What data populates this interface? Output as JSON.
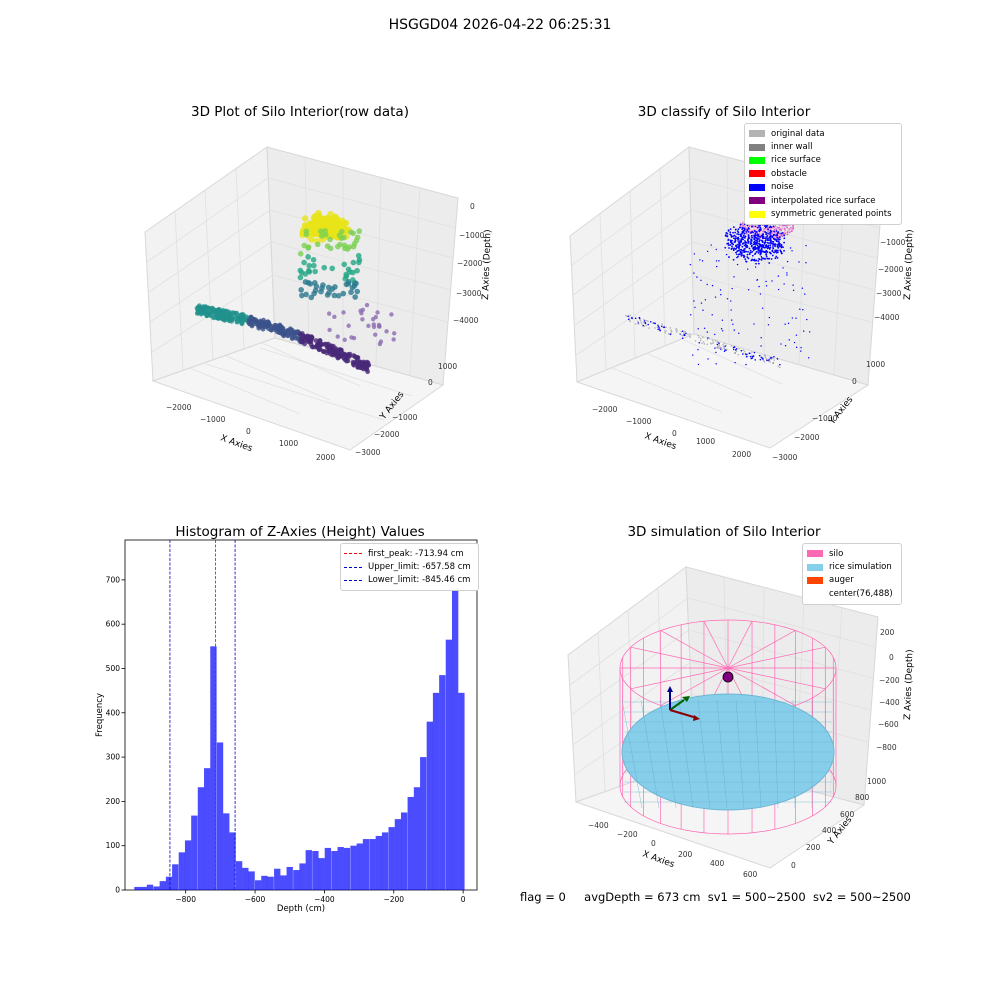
{
  "figure": {
    "title": "HSGGD04 2026-04-22 06:25:31",
    "status": {
      "flag": "flag = 0",
      "avg_depth": "avgDepth = 673 cm",
      "sv1": "sv1 = 500~2500",
      "sv2": "sv2 = 500~2500"
    }
  },
  "panels": {
    "raw": {
      "title": "3D Plot of Silo Interior(row data)",
      "xlabel": "X Axies",
      "ylabel": "Y Axies",
      "zlabel": "Z Axies (Depth)",
      "xticks": [
        "−2000",
        "−1000",
        "0",
        "1000",
        "2000"
      ],
      "yticks": [
        "1000",
        "0",
        "−1000",
        "−2000",
        "−3000",
        "−4000"
      ],
      "zticks": [
        "0",
        "−1000",
        "−2000",
        "−3000",
        "−4000"
      ]
    },
    "classify": {
      "title": "3D classify of Silo Interior",
      "xlabel": "X Axies",
      "ylabel": "Y Axies",
      "zlabel": "Z Axies (Depth)",
      "xticks": [
        "−2000",
        "−1000",
        "0",
        "1000",
        "2000"
      ],
      "yticks": [
        "1000",
        "0",
        "−1000",
        "−2000",
        "−3000",
        "−4000"
      ],
      "zticks": [
        "−1000",
        "−2000",
        "−3000",
        "−4000"
      ],
      "legend": [
        {
          "label": "original data",
          "color": "#b3b3b3"
        },
        {
          "label": "inner wall",
          "color": "#808080"
        },
        {
          "label": "rice surface",
          "color": "#00ff00"
        },
        {
          "label": "obstacle",
          "color": "#ff0000"
        },
        {
          "label": "noise",
          "color": "#0000ff"
        },
        {
          "label": "interpolated rice surface",
          "color": "#800080"
        },
        {
          "label": "symmetric generated points",
          "color": "#ffff00"
        }
      ]
    },
    "simulation": {
      "title": "3D simulation of Silo Interior",
      "xlabel": "X Axies",
      "ylabel": "Y Axies",
      "zlabel": "Z Axies (Depth)",
      "xticks": [
        "−400",
        "−200",
        "0",
        "200",
        "400",
        "600"
      ],
      "yticks": [
        "1000",
        "800",
        "600",
        "400",
        "200",
        "0"
      ],
      "zticks": [
        "200",
        "0",
        "−200",
        "−400",
        "−600",
        "−800"
      ],
      "legend": [
        {
          "label": "silo",
          "color": "#ff69b4"
        },
        {
          "label": "rice simulation",
          "color": "#87ceeb"
        },
        {
          "label": "auger",
          "color": "#ff4500"
        },
        {
          "label": "center(76,488)",
          "color": ""
        }
      ]
    }
  },
  "chart_data": {
    "type": "bar",
    "title": "Histogram of Z-Axies (Height) Values",
    "xlabel": "Depth (cm)",
    "ylabel": "Frequency",
    "xlim": [
      -975,
      40
    ],
    "ylim": [
      0,
      790
    ],
    "xticks": [
      -800,
      -600,
      -400,
      -200,
      0
    ],
    "yticks": [
      0,
      100,
      200,
      300,
      400,
      500,
      600,
      700
    ],
    "bin_width": 18.3,
    "bins": [
      {
        "x": -939,
        "count": 7
      },
      {
        "x": -921,
        "count": 7
      },
      {
        "x": -903,
        "count": 12
      },
      {
        "x": -884,
        "count": 8
      },
      {
        "x": -866,
        "count": 20
      },
      {
        "x": -848,
        "count": 30
      },
      {
        "x": -830,
        "count": 58
      },
      {
        "x": -811,
        "count": 85
      },
      {
        "x": -793,
        "count": 112
      },
      {
        "x": -775,
        "count": 168
      },
      {
        "x": -756,
        "count": 232
      },
      {
        "x": -738,
        "count": 275
      },
      {
        "x": -720,
        "count": 550
      },
      {
        "x": -701,
        "count": 333
      },
      {
        "x": -683,
        "count": 173
      },
      {
        "x": -665,
        "count": 130
      },
      {
        "x": -646,
        "count": 65
      },
      {
        "x": -628,
        "count": 50
      },
      {
        "x": -610,
        "count": 42
      },
      {
        "x": -591,
        "count": 22
      },
      {
        "x": -573,
        "count": 32
      },
      {
        "x": -555,
        "count": 30
      },
      {
        "x": -536,
        "count": 48
      },
      {
        "x": -518,
        "count": 33
      },
      {
        "x": -500,
        "count": 52
      },
      {
        "x": -481,
        "count": 45
      },
      {
        "x": -463,
        "count": 60
      },
      {
        "x": -445,
        "count": 90
      },
      {
        "x": -426,
        "count": 88
      },
      {
        "x": -408,
        "count": 72
      },
      {
        "x": -390,
        "count": 95
      },
      {
        "x": -371,
        "count": 88
      },
      {
        "x": -353,
        "count": 97
      },
      {
        "x": -335,
        "count": 95
      },
      {
        "x": -316,
        "count": 100
      },
      {
        "x": -298,
        "count": 105
      },
      {
        "x": -280,
        "count": 115
      },
      {
        "x": -261,
        "count": 115
      },
      {
        "x": -243,
        "count": 122
      },
      {
        "x": -225,
        "count": 130
      },
      {
        "x": -206,
        "count": 142
      },
      {
        "x": -188,
        "count": 160
      },
      {
        "x": -170,
        "count": 175
      },
      {
        "x": -151,
        "count": 210
      },
      {
        "x": -133,
        "count": 232
      },
      {
        "x": -115,
        "count": 300
      },
      {
        "x": -96,
        "count": 380
      },
      {
        "x": -78,
        "count": 445
      },
      {
        "x": -60,
        "count": 485
      },
      {
        "x": -41,
        "count": 565
      },
      {
        "x": -23,
        "count": 750
      },
      {
        "x": -5,
        "count": 445
      }
    ],
    "color": "#0000ff",
    "vlines": [
      {
        "x": -713.94,
        "color": "#ff0000",
        "label": "first_peak: -713.94 cm"
      },
      {
        "x": -657.58,
        "color": "#0000cc",
        "label": "Upper_limit: -657.58 cm"
      },
      {
        "x": -845.46,
        "color": "#0000cc",
        "label": "Lower_limit: -845.46 cm"
      }
    ],
    "legend_position": "upper right"
  }
}
